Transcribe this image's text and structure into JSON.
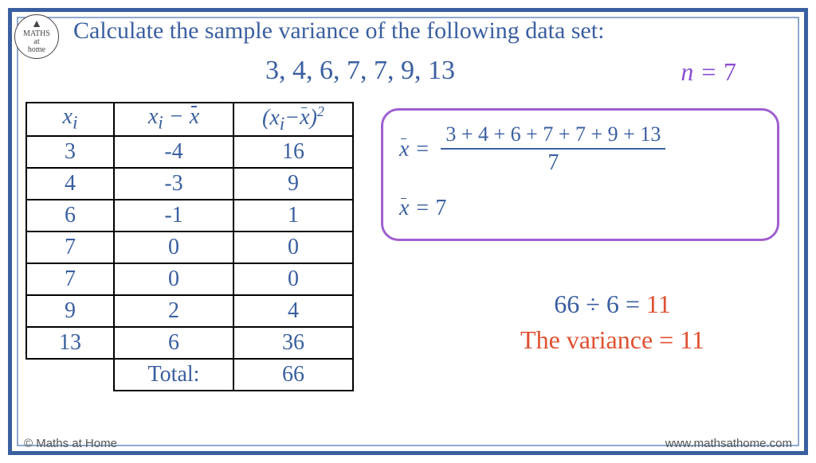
{
  "title": "Calculate the sample variance of the following data set:",
  "dataset_text": "3, 4, 6, 7, 7, 9, 13",
  "n_label": "n =",
  "n_value": "7",
  "table": {
    "headers": {
      "c1": "x",
      "c1_sub": "i",
      "c2": "x",
      "c2_sub": "i",
      "c2_minus": " − ",
      "c2_xbar": "x",
      "c3_open": "(",
      "c3_x": "x",
      "c3_sub": "i",
      "c3_minus": "−",
      "c3_xbar": "x",
      "c3_close": ")",
      "c3_sup": "2"
    },
    "rows": [
      {
        "xi": "3",
        "diff": "-4",
        "sq": "16"
      },
      {
        "xi": "4",
        "diff": "-3",
        "sq": "9"
      },
      {
        "xi": "6",
        "diff": "-1",
        "sq": "1"
      },
      {
        "xi": "7",
        "diff": "0",
        "sq": "0"
      },
      {
        "xi": "7",
        "diff": "0",
        "sq": "0"
      },
      {
        "xi": "9",
        "diff": "2",
        "sq": "4"
      },
      {
        "xi": "13",
        "diff": "6",
        "sq": "36"
      }
    ],
    "total_label": "Total:",
    "total_value": "66"
  },
  "mean": {
    "lhs": "x̄ =",
    "numerator": "3 + 4 + 6 + 7 + 7 + 9 + 13",
    "denominator": "7",
    "result_lhs": "x̄ =",
    "result_value": "7"
  },
  "calc": {
    "expr_left": "66 ÷ 6 =",
    "expr_result": "11",
    "variance_label": "The variance =",
    "variance_value": "11"
  },
  "logo": {
    "top": "MATHS",
    "mid": "at",
    "bottom": "home"
  },
  "footer": {
    "copyright": "© Maths at Home",
    "website": "www.mathsathome.com"
  },
  "colors": {
    "frame_outer": "#3a5fa0",
    "frame_inner": "#8ea8d0",
    "text_primary": "#3a5fa0",
    "accent_purple": "#8a4fd0",
    "accent_orange": "#e05030",
    "box_border": "#a05fd0"
  }
}
